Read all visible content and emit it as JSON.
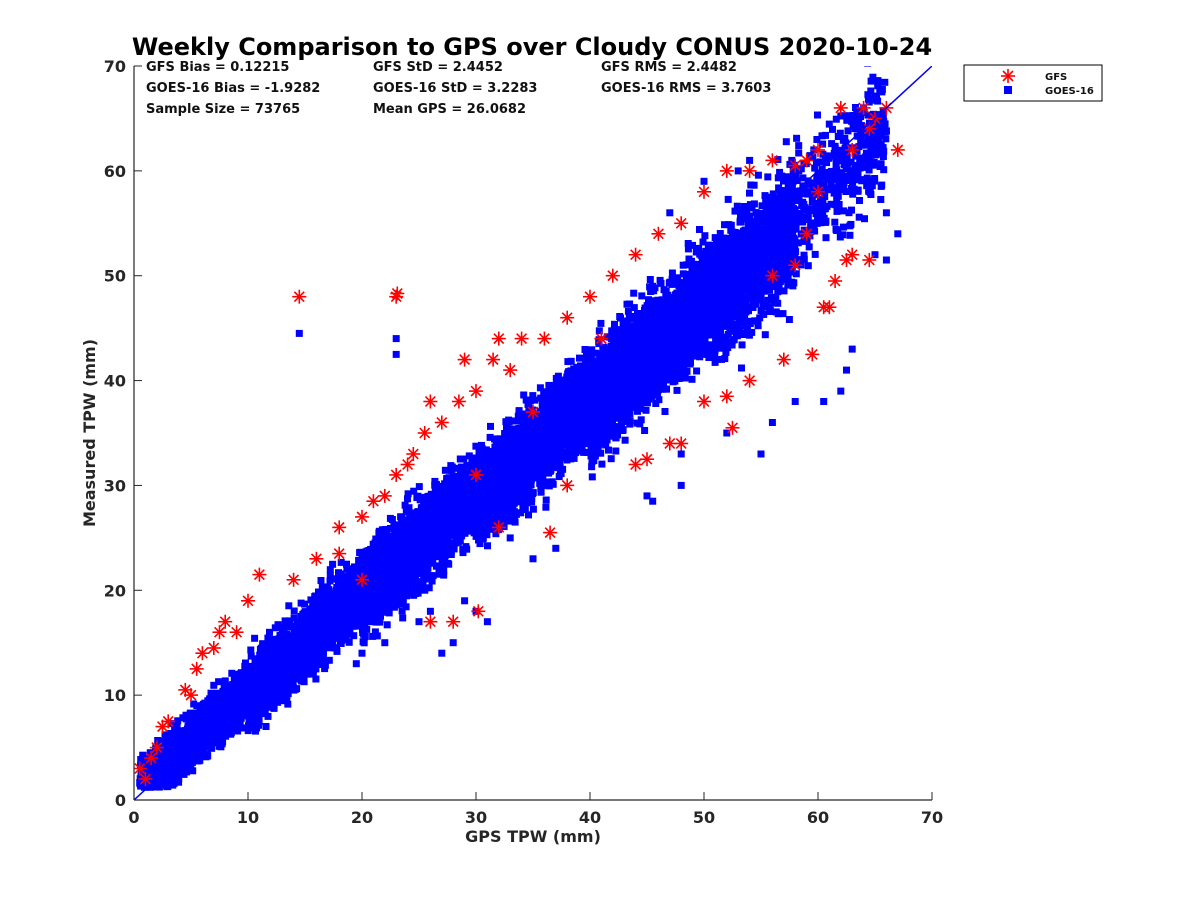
{
  "chart_data": {
    "type": "scatter",
    "title": "Weekly Comparison to GPS over Cloudy CONUS 2020-10-24",
    "xlabel": "GPS TPW (mm)",
    "ylabel": "Measured TPW (mm)",
    "xlim": [
      0,
      70
    ],
    "ylim": [
      0,
      70
    ],
    "xticks": [
      "0",
      "10",
      "20",
      "30",
      "40",
      "50",
      "60",
      "70"
    ],
    "yticks": [
      "0",
      "10",
      "20",
      "30",
      "40",
      "50",
      "60",
      "70"
    ],
    "grid": false,
    "legend_position": "outside-top-right",
    "one_to_one_line": {
      "from": [
        0,
        0
      ],
      "to": [
        70,
        70
      ],
      "color": "#0000ff"
    },
    "stats": [
      "GFS Bias = 0.12215",
      "GFS StD = 2.4452",
      "GFS RMS = 2.4482",
      "GOES-16 Bias = -1.9282",
      "GOES-16 StD = 3.2283",
      "GOES-16 RMS = 3.7603",
      "Sample Size = 73765",
      "Mean GPS = 26.0682"
    ],
    "series": [
      {
        "name": "GFS",
        "marker": "asterisk",
        "color": "#ff0000",
        "points": [
          [
            0.5,
            3
          ],
          [
            1,
            2
          ],
          [
            1.5,
            4
          ],
          [
            2,
            5
          ],
          [
            2.5,
            7
          ],
          [
            3,
            7.5
          ],
          [
            4.5,
            10.5
          ],
          [
            5,
            10
          ],
          [
            5.5,
            12.5
          ],
          [
            6,
            14
          ],
          [
            7,
            14.5
          ],
          [
            7.5,
            16
          ],
          [
            10,
            19
          ],
          [
            11,
            21.5
          ],
          [
            14,
            21
          ],
          [
            16,
            23
          ],
          [
            18,
            26
          ],
          [
            20,
            27
          ],
          [
            21,
            28.5
          ],
          [
            23,
            31
          ],
          [
            24.5,
            33
          ],
          [
            25.5,
            35
          ],
          [
            26,
            38
          ],
          [
            27,
            36
          ],
          [
            28.5,
            38
          ],
          [
            30,
            39
          ],
          [
            31.5,
            42
          ],
          [
            32,
            44
          ],
          [
            33,
            41
          ],
          [
            34,
            44
          ],
          [
            36,
            44
          ],
          [
            38,
            46
          ],
          [
            40,
            48
          ],
          [
            42,
            50
          ],
          [
            44,
            52
          ],
          [
            46,
            54
          ],
          [
            48,
            55
          ],
          [
            50,
            58
          ],
          [
            52,
            60
          ],
          [
            54,
            60
          ],
          [
            56,
            61
          ],
          [
            58,
            60.5
          ],
          [
            60,
            62
          ],
          [
            62,
            66
          ],
          [
            64,
            66
          ],
          [
            65,
            65
          ],
          [
            66,
            66
          ],
          [
            67,
            62
          ],
          [
            63,
            62
          ],
          [
            64.5,
            64
          ],
          [
            14.5,
            48
          ],
          [
            23,
            48
          ],
          [
            23.1,
            48.3
          ],
          [
            29,
            42
          ],
          [
            36.5,
            25.5
          ],
          [
            30.2,
            18
          ],
          [
            28,
            17
          ],
          [
            26,
            17
          ],
          [
            38,
            30
          ],
          [
            44,
            32
          ],
          [
            45,
            32.5
          ],
          [
            47,
            34
          ],
          [
            48,
            34
          ],
          [
            50,
            38
          ],
          [
            52,
            38.5
          ],
          [
            52.5,
            35.5
          ],
          [
            54,
            40
          ],
          [
            57,
            42
          ],
          [
            59.5,
            42.5
          ],
          [
            60.5,
            47
          ],
          [
            61,
            47
          ],
          [
            62.5,
            51.5
          ],
          [
            63,
            52
          ],
          [
            64.5,
            51.5
          ],
          [
            61.5,
            49.5
          ],
          [
            59,
            54
          ],
          [
            58,
            51
          ],
          [
            56,
            50
          ],
          [
            60,
            58
          ],
          [
            59,
            61
          ],
          [
            18,
            23.5
          ],
          [
            8,
            17
          ],
          [
            9,
            16
          ],
          [
            22,
            29
          ],
          [
            24,
            32
          ],
          [
            20,
            21
          ],
          [
            32,
            26
          ],
          [
            30,
            31
          ],
          [
            35,
            37
          ],
          [
            41,
            44
          ]
        ]
      },
      {
        "name": "GOES-16",
        "marker": "square",
        "color": "#0000ff",
        "bands": [
          {
            "x0": 0.5,
            "x1": 10,
            "y_center_offset": 0.5,
            "half_width": 2.2,
            "count": 1700
          },
          {
            "x0": 10,
            "x1": 20,
            "y_center_offset": 0.0,
            "half_width": 3.0,
            "count": 1900
          },
          {
            "x0": 20,
            "x1": 30,
            "y_center_offset": -0.5,
            "half_width": 3.6,
            "count": 2100
          },
          {
            "x0": 30,
            "x1": 40,
            "y_center_offset": -1.5,
            "half_width": 4.0,
            "count": 2000
          },
          {
            "x0": 40,
            "x1": 50,
            "y_center_offset": -2.5,
            "half_width": 4.6,
            "count": 1900
          },
          {
            "x0": 50,
            "x1": 58,
            "y_center_offset": -3.0,
            "half_width": 5.2,
            "count": 1300
          },
          {
            "x0": 58,
            "x1": 66,
            "y_center_offset": -2.0,
            "half_width": 5.0,
            "count": 400
          }
        ],
        "outliers": [
          [
            14.5,
            44.5
          ],
          [
            23,
            44
          ],
          [
            23,
            42.5
          ],
          [
            60.5,
            38
          ],
          [
            62,
            39
          ],
          [
            62.5,
            41
          ],
          [
            55,
            33
          ],
          [
            48,
            30
          ],
          [
            45,
            29
          ],
          [
            45.5,
            28.5
          ],
          [
            33,
            27
          ],
          [
            32,
            26
          ],
          [
            33,
            25
          ],
          [
            30,
            18
          ],
          [
            31,
            17
          ],
          [
            28,
            15
          ],
          [
            27,
            14
          ],
          [
            35,
            23
          ],
          [
            20,
            14
          ],
          [
            22,
            15
          ],
          [
            19.5,
            13
          ],
          [
            47,
            56
          ],
          [
            50,
            59
          ],
          [
            53,
            60
          ],
          [
            54,
            61
          ],
          [
            64,
            66
          ],
          [
            65,
            67
          ],
          [
            66,
            56
          ],
          [
            67,
            54
          ],
          [
            63,
            43
          ],
          [
            65,
            52
          ],
          [
            66,
            51.5
          ],
          [
            58,
            38
          ],
          [
            56,
            36
          ],
          [
            52,
            35
          ],
          [
            48,
            33
          ],
          [
            37,
            24
          ],
          [
            29,
            19
          ],
          [
            26,
            18
          ],
          [
            25,
            17
          ]
        ]
      }
    ]
  },
  "legend": {
    "items": [
      {
        "label": "GFS",
        "color": "#ff0000",
        "marker": "asterisk"
      },
      {
        "label": "GOES-16",
        "color": "#0000ff",
        "marker": "square"
      }
    ]
  }
}
